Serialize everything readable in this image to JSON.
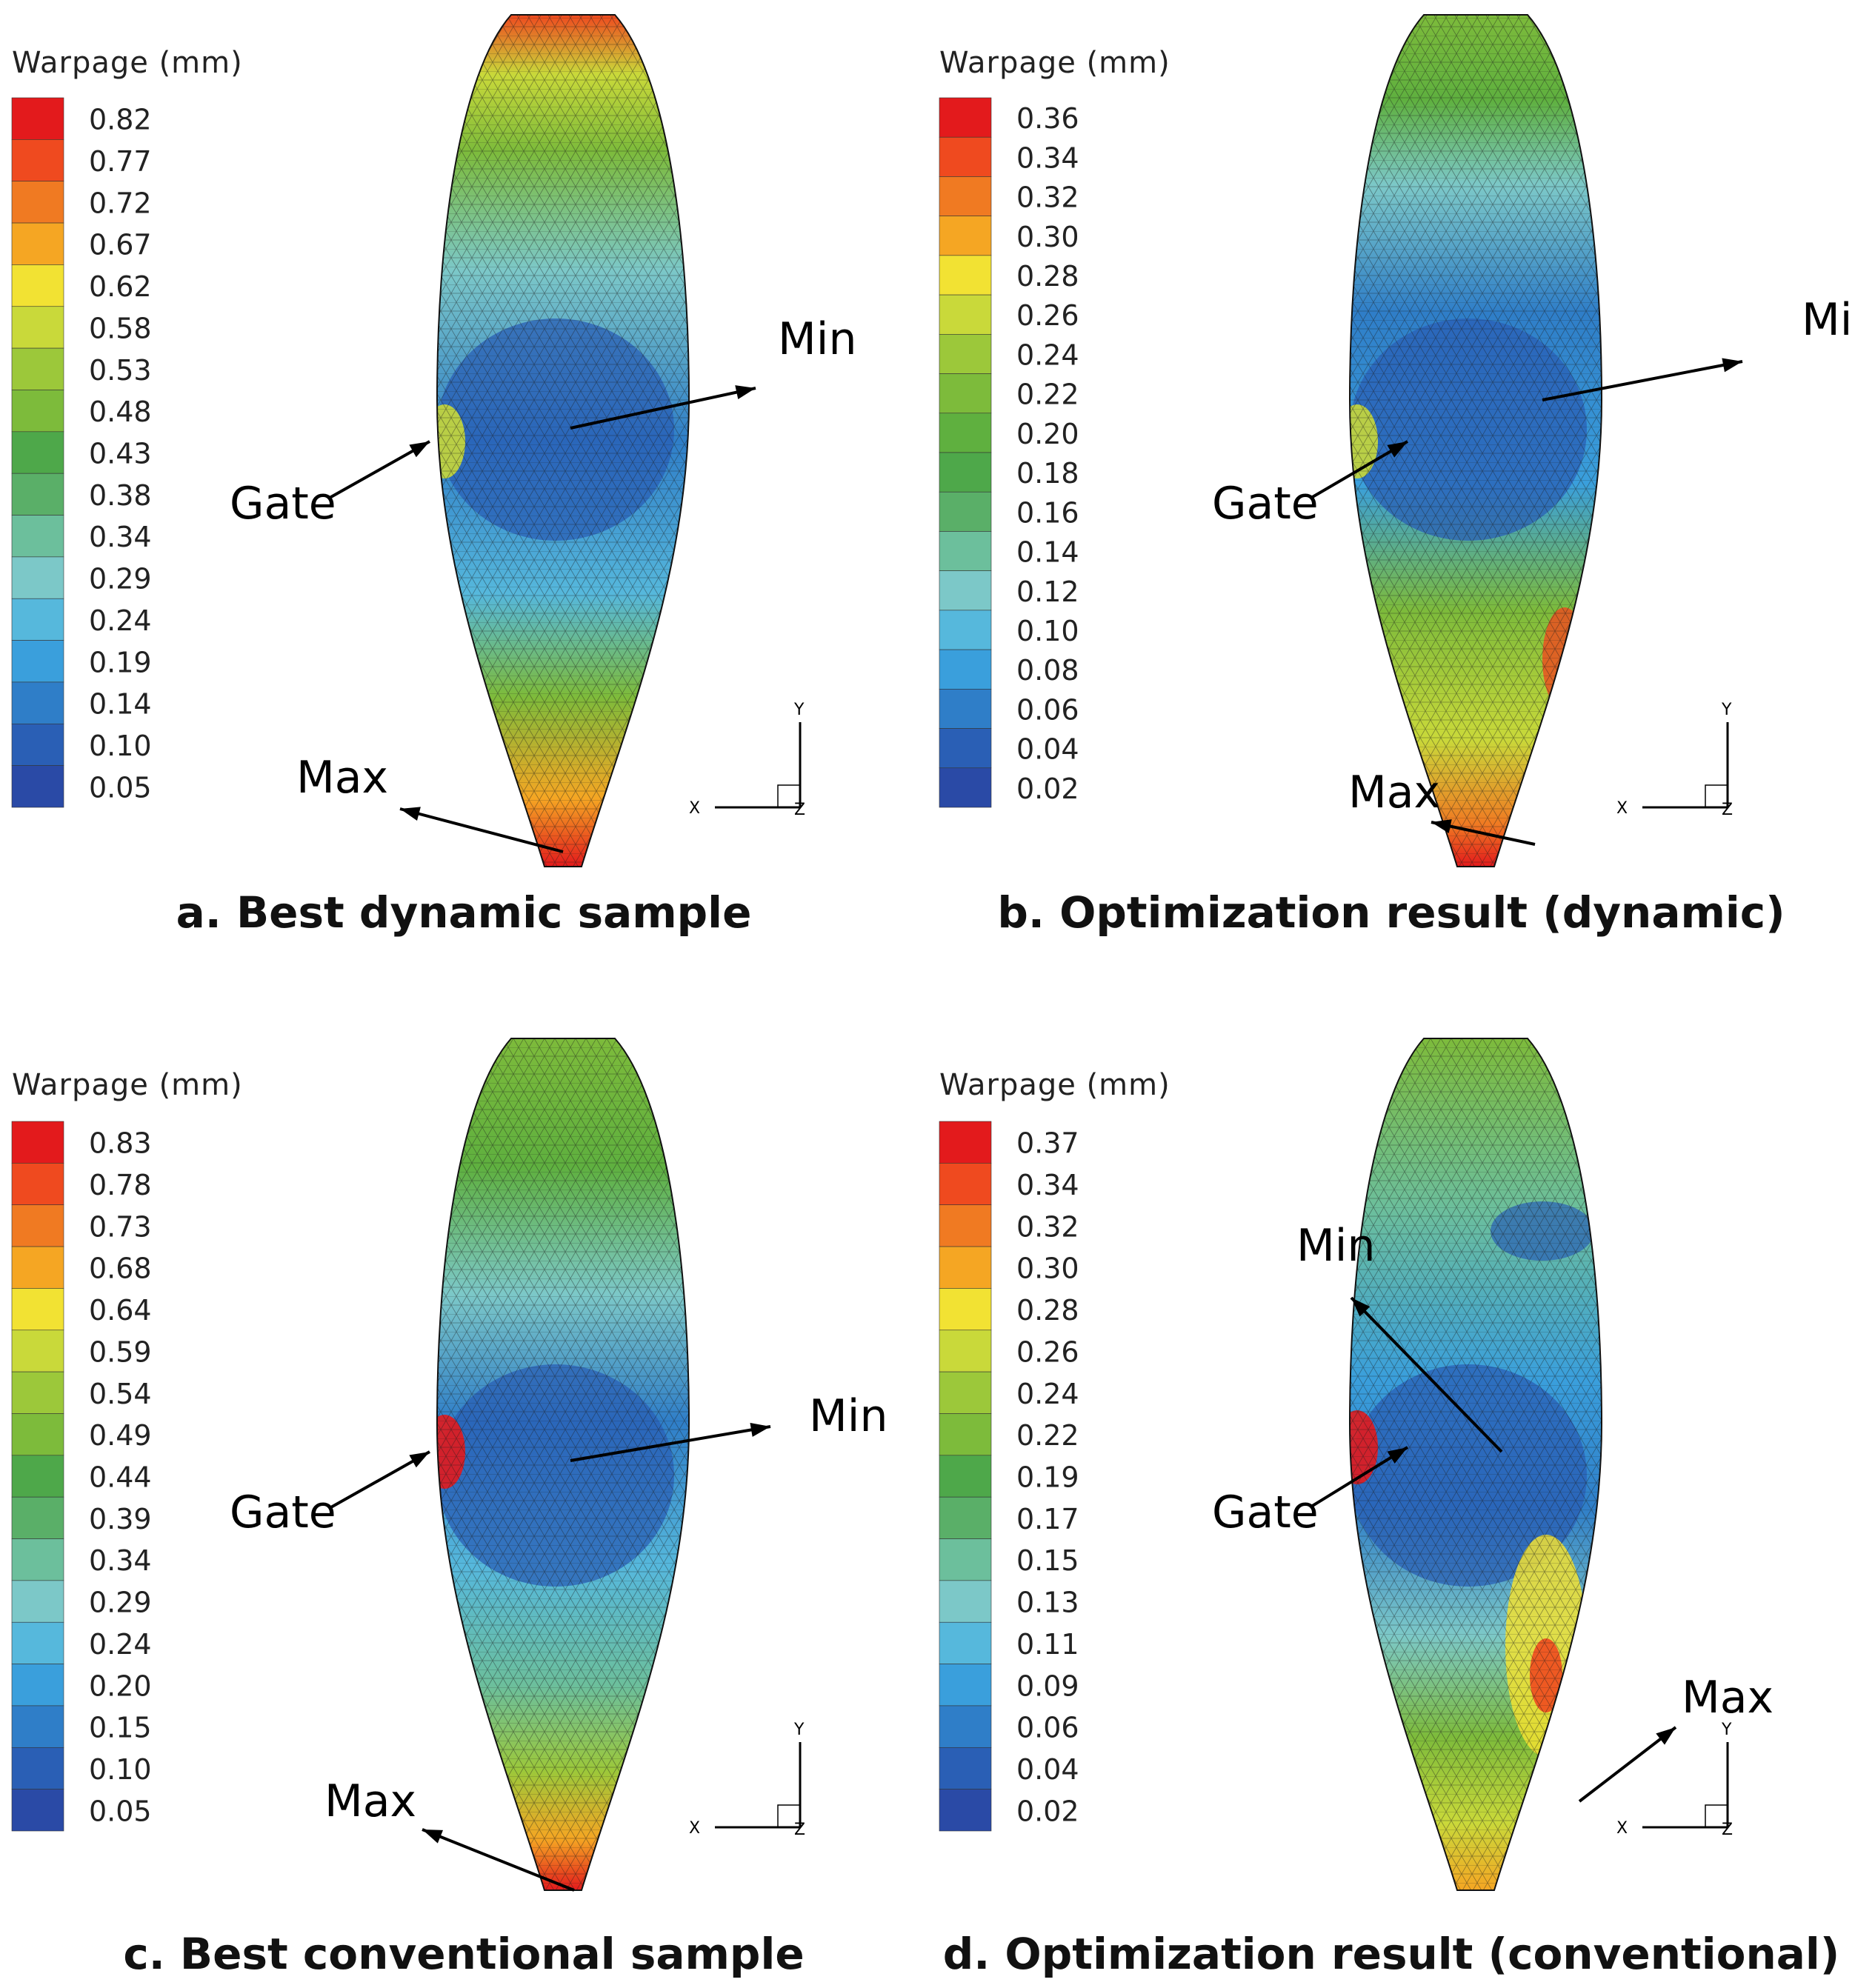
{
  "panels": [
    {
      "id": "a",
      "legend_title": "Warpage (mm)",
      "legend_values": [
        "0.82",
        "0.77",
        "0.72",
        "0.67",
        "0.62",
        "0.58",
        "0.53",
        "0.48",
        "0.43",
        "0.38",
        "0.34",
        "0.29",
        "0.24",
        "0.19",
        "0.14",
        "0.10",
        "0.05"
      ],
      "labels": {
        "gate": "Gate",
        "min": "Min",
        "max": "Max"
      },
      "axis": {
        "x": "X",
        "y": "Y",
        "z": "Z"
      },
      "caption": "a. Best dynamic sample"
    },
    {
      "id": "b",
      "legend_title": "Warpage (mm)",
      "legend_values": [
        "0.36",
        "0.34",
        "0.32",
        "0.30",
        "0.28",
        "0.26",
        "0.24",
        "0.22",
        "0.20",
        "0.18",
        "0.16",
        "0.14",
        "0.12",
        "0.10",
        "0.08",
        "0.06",
        "0.04",
        "0.02"
      ],
      "labels": {
        "gate": "Gate",
        "min": "Min",
        "max": "Max"
      },
      "axis": {
        "x": "X",
        "y": "Y",
        "z": "Z"
      },
      "caption": "b. Optimization result (dynamic)"
    },
    {
      "id": "c",
      "legend_title": "Warpage (mm)",
      "legend_values": [
        "0.83",
        "0.78",
        "0.73",
        "0.68",
        "0.64",
        "0.59",
        "0.54",
        "0.49",
        "0.44",
        "0.39",
        "0.34",
        "0.29",
        "0.24",
        "0.20",
        "0.15",
        "0.10",
        "0.05"
      ],
      "labels": {
        "gate": "Gate",
        "min": "Min",
        "max": "Max"
      },
      "axis": {
        "x": "X",
        "y": "Y",
        "z": "Z"
      },
      "caption": "c. Best conventional sample"
    },
    {
      "id": "d",
      "legend_title": "Warpage (mm)",
      "legend_values": [
        "0.37",
        "0.34",
        "0.32",
        "0.30",
        "0.28",
        "0.26",
        "0.24",
        "0.22",
        "0.19",
        "0.17",
        "0.15",
        "0.13",
        "0.11",
        "0.09",
        "0.06",
        "0.04",
        "0.02"
      ],
      "labels": {
        "gate": "Gate",
        "min": "Min",
        "max": "Max"
      },
      "axis": {
        "x": "X",
        "y": "Y",
        "z": "Z"
      },
      "caption": "d. Optimization result (conventional)"
    }
  ],
  "colors": {
    "scale": [
      "#e31a1c",
      "#ef4a1f",
      "#f07a22",
      "#f5a623",
      "#f2e233",
      "#c9d93a",
      "#9cc83a",
      "#7dbb3b",
      "#5fb03f",
      "#4ea84a",
      "#5aaf68",
      "#6cbf9c",
      "#7cc8c8",
      "#56b8dc",
      "#3a9fdc",
      "#2f7ec8",
      "#2a5fb5",
      "#2a4aa6"
    ],
    "mesh": "#1a1a1a"
  }
}
